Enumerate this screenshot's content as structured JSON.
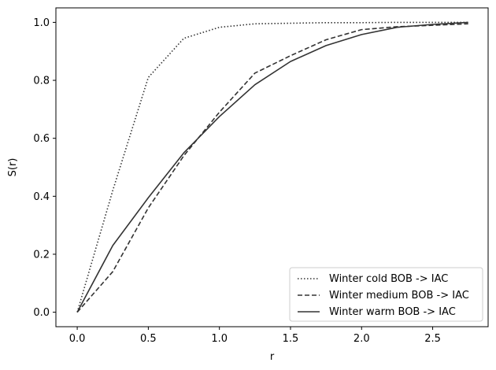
{
  "chart_data": {
    "type": "line",
    "title": "",
    "xlabel": "r",
    "ylabel": "S(r)",
    "xlim": [
      -0.15,
      2.89
    ],
    "ylim": [
      -0.05,
      1.05
    ],
    "xticks": [
      0.0,
      0.5,
      1.0,
      1.5,
      2.0,
      2.5
    ],
    "xtick_labels": [
      "0.0",
      "0.5",
      "1.0",
      "1.5",
      "2.0",
      "2.5"
    ],
    "yticks": [
      0.0,
      0.2,
      0.4,
      0.6,
      0.8,
      1.0
    ],
    "ytick_labels": [
      "0.0",
      "0.2",
      "0.4",
      "0.6",
      "0.8",
      "1.0"
    ],
    "grid": false,
    "legend_position": "lower-right",
    "series": [
      {
        "name": "Winter cold BOB -> IAC",
        "style": "dotted",
        "color": "#333333",
        "x": [
          0.0,
          0.25,
          0.5,
          0.75,
          1.0,
          1.25,
          1.5,
          1.75,
          2.0,
          2.25,
          2.5,
          2.75
        ],
        "y": [
          0.0,
          0.42,
          0.81,
          0.945,
          0.983,
          0.995,
          0.997,
          0.999,
          0.999,
          1.0,
          1.0,
          1.0
        ]
      },
      {
        "name": "Winter medium BOB -> IAC",
        "style": "dashed",
        "color": "#333333",
        "x": [
          0.0,
          0.25,
          0.5,
          0.75,
          1.0,
          1.25,
          1.5,
          1.75,
          2.0,
          2.25,
          2.5,
          2.75
        ],
        "y": [
          0.0,
          0.14,
          0.36,
          0.54,
          0.69,
          0.825,
          0.885,
          0.94,
          0.975,
          0.985,
          0.99,
          0.995
        ]
      },
      {
        "name": "Winter warm BOB -> IAC",
        "style": "solid",
        "color": "#333333",
        "x": [
          0.0,
          0.25,
          0.5,
          0.75,
          1.0,
          1.25,
          1.5,
          1.75,
          2.0,
          2.25,
          2.5,
          2.75
        ],
        "y": [
          0.0,
          0.23,
          0.395,
          0.55,
          0.675,
          0.785,
          0.865,
          0.92,
          0.958,
          0.983,
          0.993,
          1.0
        ]
      }
    ]
  }
}
